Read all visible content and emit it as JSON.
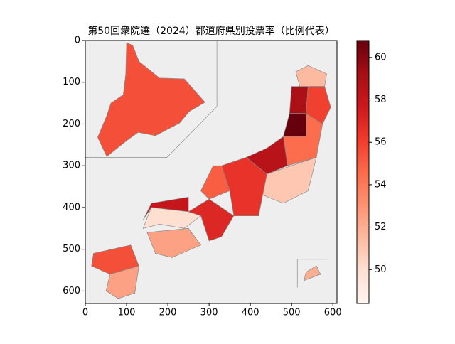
{
  "chart_data": {
    "type": "choropleth",
    "title": "第50回衆院選（2024）都道府県別投票率（比例代表）",
    "xlim": [
      0,
      610
    ],
    "ylim": [
      630,
      0
    ],
    "xticks": [
      0,
      100,
      200,
      300,
      400,
      500,
      600
    ],
    "yticks": [
      0,
      100,
      200,
      300,
      400,
      500,
      600
    ],
    "colormap": "Reds",
    "clim": [
      48.4,
      60.8
    ],
    "cticks": [
      50,
      52,
      54,
      56,
      58,
      60
    ],
    "values": [
      55.5,
      51.5,
      59,
      56,
      60.8,
      54.5,
      58.5,
      51,
      56.5,
      55,
      57,
      58,
      50,
      52.5,
      55.5,
      52.5,
      52
    ]
  }
}
